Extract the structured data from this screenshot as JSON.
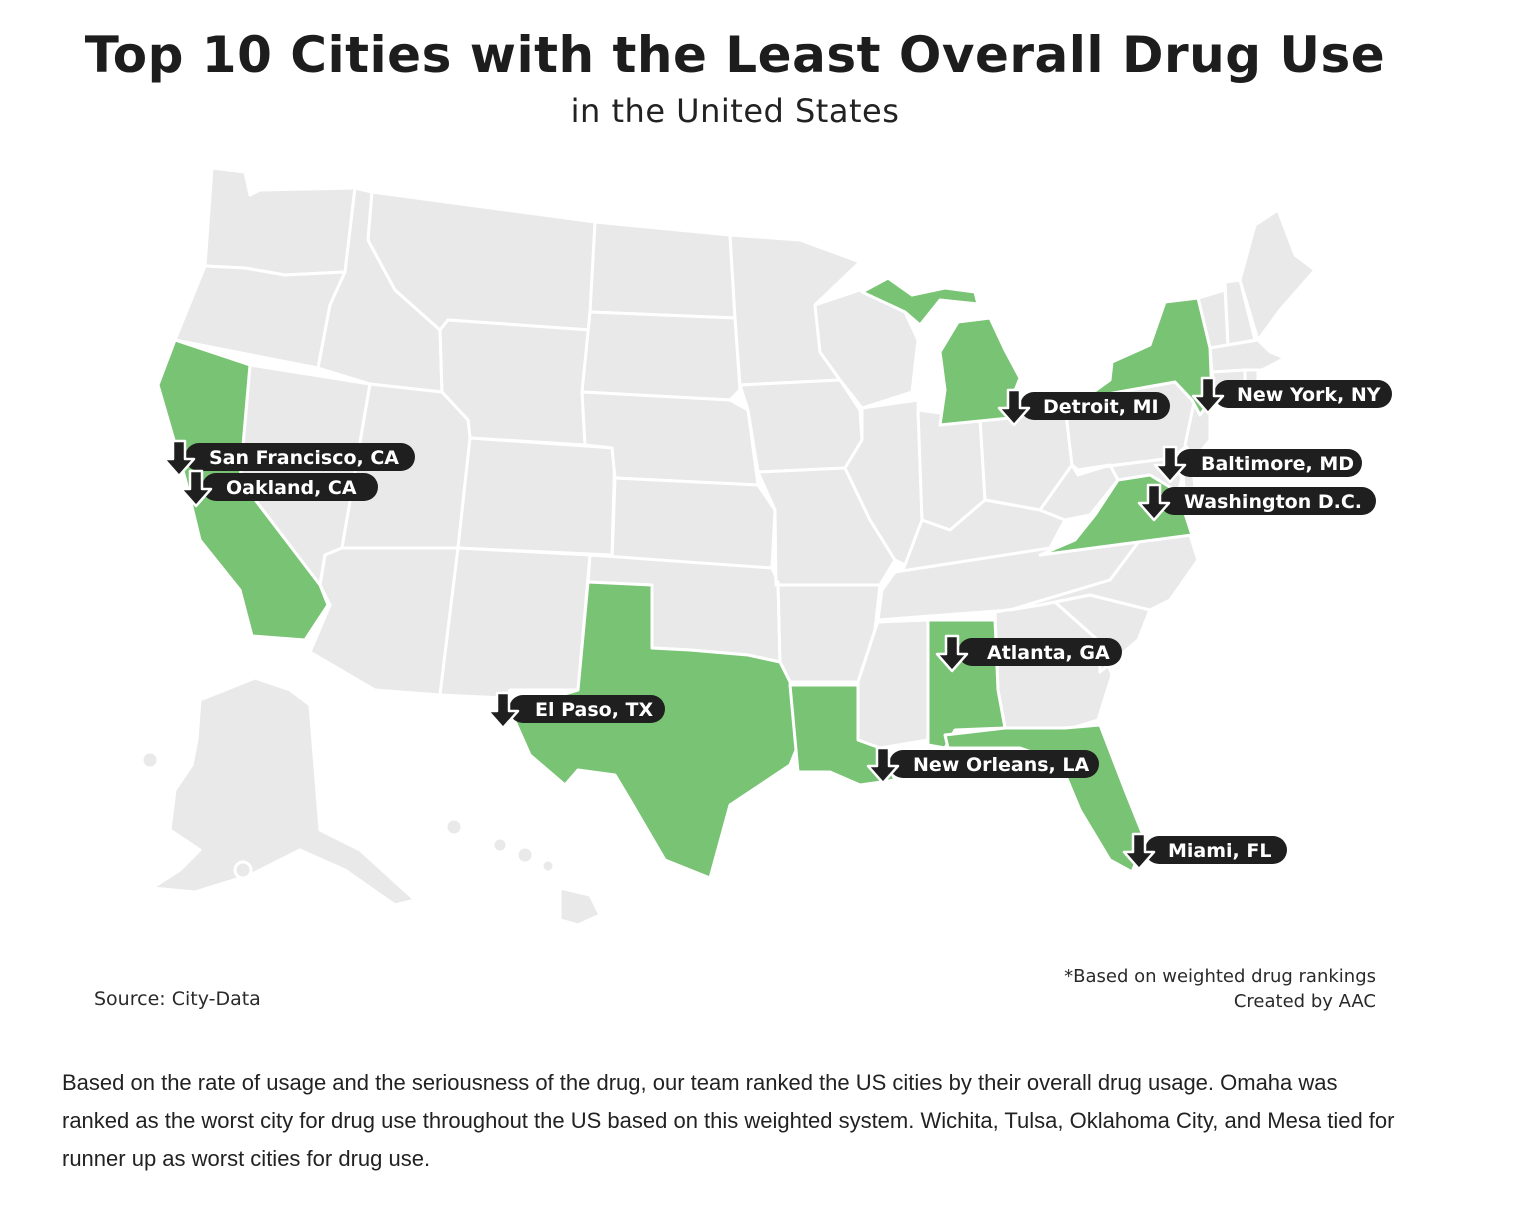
{
  "title": "Top 10 Cities with the Least Overall Drug Use",
  "subtitle": "in the United States",
  "colors": {
    "highlight": "#79c374",
    "state_default": "#e9e9e9",
    "label_bg": "#1f1f1f",
    "label_text": "#ffffff"
  },
  "map": {
    "highlighted_states": [
      "California",
      "Texas",
      "Louisiana",
      "Alabama",
      "Florida",
      "Michigan",
      "New York",
      "Virginia"
    ],
    "cities": [
      {
        "label": "San Francisco, CA",
        "state": "California",
        "icon": "down-arrow-icon"
      },
      {
        "label": "Oakland, CA",
        "state": "California",
        "icon": "down-arrow-icon"
      },
      {
        "label": "El Paso, TX",
        "state": "Texas",
        "icon": "down-arrow-icon"
      },
      {
        "label": "New Orleans, LA",
        "state": "Louisiana",
        "icon": "down-arrow-icon"
      },
      {
        "label": "Atlanta, GA",
        "state": "Georgia",
        "icon": "down-arrow-icon"
      },
      {
        "label": "Miami, FL",
        "state": "Florida",
        "icon": "down-arrow-icon"
      },
      {
        "label": "Detroit, MI",
        "state": "Michigan",
        "icon": "down-arrow-icon"
      },
      {
        "label": "New York, NY",
        "state": "New York",
        "icon": "down-arrow-icon"
      },
      {
        "label": "Baltimore, MD",
        "state": "Maryland",
        "icon": "down-arrow-icon"
      },
      {
        "label": "Washington D.C.",
        "state": "District of Columbia",
        "icon": "down-arrow-icon"
      }
    ]
  },
  "source": "Source: City-Data",
  "note": "*Based on weighted drug rankings",
  "credit": "Created by AAC",
  "body_text": "Based on the rate of usage and the seriousness of the drug, our team ranked the US cities by their overall drug usage. Omaha was ranked as the worst city for drug use throughout the US based on this weighted system. Wichita, Tulsa, Oklahoma City, and Mesa tied for runner up as worst cities for drug use."
}
